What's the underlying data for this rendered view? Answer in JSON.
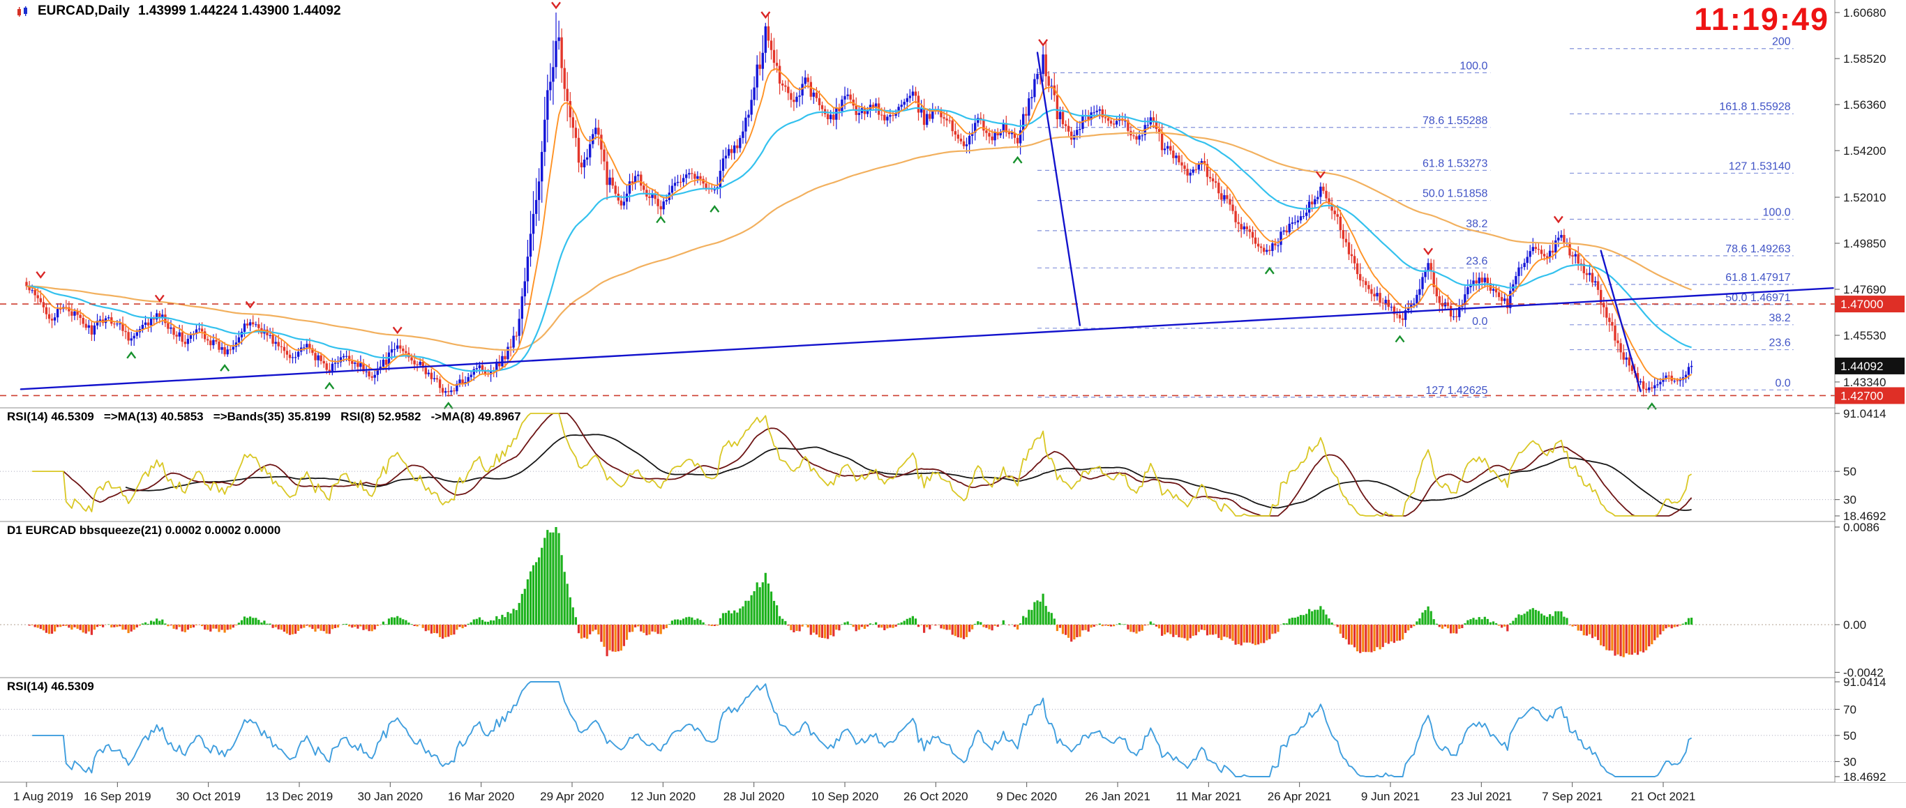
{
  "window": {
    "clock": "11:19:49"
  },
  "main": {
    "title": "EURCAD,Daily",
    "ohlc": "1.43999 1.44224 1.43900 1.44092",
    "scale": [
      {
        "t": "1.60680",
        "v": 1.6068
      },
      {
        "t": "1.58520",
        "v": 1.5852
      },
      {
        "t": "1.56360",
        "v": 1.5636
      },
      {
        "t": "1.54200",
        "v": 1.542
      },
      {
        "t": "1.52010",
        "v": 1.5201
      },
      {
        "t": "1.49850",
        "v": 1.4985
      },
      {
        "t": "1.47690",
        "v": 1.4769
      },
      {
        "t": "1.45530",
        "v": 1.4553
      },
      {
        "t": "1.43340",
        "v": 1.4334
      }
    ],
    "badges": [
      {
        "t": "1.47000",
        "v": 1.47,
        "style": "red"
      },
      {
        "t": "1.44092",
        "v": 1.44092,
        "style": "black"
      },
      {
        "t": "1.42700",
        "v": 1.427,
        "style": "red"
      }
    ]
  },
  "panels": {
    "rsi_multi": {
      "header": "RSI(14) 46.5309   =>MA(13) 40.5853   =>Bands(35) 35.8199   RSI(8) 52.9582   ->MA(8) 49.8967",
      "scale": [
        {
          "t": "91.0414",
          "v": 91.0414
        },
        {
          "t": "50",
          "v": 50
        },
        {
          "t": "30",
          "v": 30
        },
        {
          "t": "18.4692",
          "v": 18.4692
        }
      ],
      "dotted_levels": [
        50,
        30
      ]
    },
    "squeeze": {
      "header": "D1 EURCAD bbsqueeze(21) 0.0002 0.0002 0.0000",
      "scale": [
        {
          "t": "0.0086",
          "v": 0.0086
        },
        {
          "t": "0.00",
          "v": 0
        },
        {
          "t": "-0.0042",
          "v": -0.0042
        }
      ]
    },
    "rsi14": {
      "header": "RSI(14) 46.5309",
      "scale": [
        {
          "t": "91.0414",
          "v": 91.0414
        },
        {
          "t": "70",
          "v": 70
        },
        {
          "t": "50",
          "v": 50
        },
        {
          "t": "30",
          "v": 30
        },
        {
          "t": "18.4692",
          "v": 18.4692
        }
      ],
      "dotted_levels": [
        70,
        50,
        30
      ]
    }
  },
  "timeline": {
    "labels": [
      "1 Aug 2019",
      "16 Sep 2019",
      "30 Oct 2019",
      "13 Dec 2019",
      "30 Jan 2020",
      "16 Mar 2020",
      "29 Apr 2020",
      "12 Jun 2020",
      "28 Jul 2020",
      "10 Sep 2020",
      "26 Oct 2020",
      "9 Dec 2020",
      "26 Jan 2021",
      "11 Mar 2021",
      "26 Apr 2021",
      "9 Jun 2021",
      "23 Jul 2021",
      "7 Sep 2021",
      "21 Oct 2021"
    ]
  },
  "colors": {
    "bull": "#1416d8",
    "bear": "#e3362a",
    "ma_fast": "#ff9224",
    "ma_mid": "#33c1ee",
    "ma_slow": "#f2b05e",
    "trendline": "#1212cc",
    "fib_line": "#8291da",
    "fib_text": "#4053c6",
    "hline": "#cd3d2e",
    "badge_red": "#df2f26",
    "badge_black": "#111111",
    "clock": "#ee1313",
    "rsi_fast": "#d9c724",
    "rsi_ma": "#6d1414",
    "rsi_slow": "#161616",
    "squeeze_pos": "#1cb21c",
    "squeeze_neg": "#e23030",
    "squeeze_neg2": "#f6830f",
    "rsi14_line": "#3f9ede",
    "marker_down": "#d92525",
    "marker_up": "#17912d"
  },
  "chart_data": {
    "type": "candlestick",
    "symbol": "EURCAD",
    "timeframe": "Daily",
    "x_unit": "trading-day index starting 1 Aug 2019",
    "last_close": 1.44092,
    "panels_meta": [
      {
        "name": "price",
        "ylim": [
          1.421,
          1.613
        ]
      },
      {
        "name": "rsi_multi",
        "ylim": [
          18.4692,
          91.0414
        ]
      },
      {
        "name": "bbsqueeze",
        "ylim": [
          -0.0042,
          0.0086
        ]
      },
      {
        "name": "rsi14",
        "ylim": [
          18.4692,
          91.0414
        ]
      }
    ],
    "indicators": {
      "ma_fast_period": 10,
      "ma_mid_period": 45,
      "ma_slow_period": 150,
      "rsi_period": 14,
      "rsi_ma_period": 13,
      "rsi_slow_ma_period": 35,
      "squeeze_period": 21,
      "squeeze_scale_max": 0.0086
    },
    "price_anchors": {
      "day": [
        0,
        5,
        9,
        14,
        19,
        23,
        28,
        33,
        37,
        42,
        47,
        51,
        56,
        61,
        65,
        70,
        75,
        79,
        84,
        89,
        93,
        98,
        103,
        107,
        112,
        117,
        121,
        126,
        131,
        135,
        140,
        145,
        149,
        154,
        159,
        163,
        168,
        173,
        177,
        182,
        187,
        191,
        196,
        201,
        205,
        210,
        215,
        219,
        224,
        229,
        233,
        238,
        243,
        247,
        252,
        257,
        261,
        266,
        271,
        275,
        280,
        285,
        289,
        294,
        299,
        303,
        308,
        313,
        317,
        322,
        327,
        331,
        336,
        341,
        345,
        350,
        355,
        359,
        364,
        369,
        373,
        378,
        383,
        387,
        392,
        397,
        401,
        406,
        411,
        415,
        420,
        425,
        429,
        434,
        439,
        443,
        448,
        453,
        457,
        462,
        467,
        471,
        476,
        481,
        485,
        490,
        495,
        499,
        504,
        509,
        513,
        518,
        523,
        527,
        532,
        537,
        541,
        546,
        551,
        555,
        560,
        565,
        569,
        574,
        579,
        583,
        588
      ],
      "close": [
        1.478,
        1.47,
        1.4635,
        1.469,
        1.462,
        1.4575,
        1.464,
        1.46,
        1.4535,
        1.46,
        1.465,
        1.459,
        1.452,
        1.458,
        1.4525,
        1.4475,
        1.455,
        1.462,
        1.457,
        1.45,
        1.445,
        1.4505,
        1.444,
        1.4395,
        1.445,
        1.442,
        1.436,
        1.442,
        1.45,
        1.446,
        1.4395,
        1.433,
        1.4275,
        1.434,
        1.441,
        1.438,
        1.444,
        1.456,
        1.49,
        1.54,
        1.6,
        1.56,
        1.535,
        1.552,
        1.53,
        1.518,
        1.532,
        1.523,
        1.515,
        1.526,
        1.533,
        1.528,
        1.523,
        1.54,
        1.546,
        1.57,
        1.6,
        1.576,
        1.565,
        1.575,
        1.562,
        1.556,
        1.568,
        1.559,
        1.564,
        1.556,
        1.562,
        1.568,
        1.556,
        1.562,
        1.552,
        1.545,
        1.556,
        1.548,
        1.553,
        1.546,
        1.57,
        1.585,
        1.56,
        1.548,
        1.556,
        1.562,
        1.553,
        1.556,
        1.548,
        1.556,
        1.545,
        1.538,
        1.531,
        1.536,
        1.525,
        1.515,
        1.506,
        1.499,
        1.494,
        1.502,
        1.508,
        1.516,
        1.523,
        1.512,
        1.496,
        1.483,
        1.475,
        1.469,
        1.462,
        1.47,
        1.487,
        1.472,
        1.464,
        1.476,
        1.484,
        1.475,
        1.47,
        1.485,
        1.496,
        1.49,
        1.502,
        1.493,
        1.485,
        1.476,
        1.458,
        1.443,
        1.433,
        1.4295,
        1.436,
        1.433,
        1.44092
      ]
    },
    "annotations": {
      "hlines": [
        {
          "price": 1.47
        },
        {
          "price": 1.427
        }
      ],
      "trendlines": [
        {
          "d1": -2,
          "p1": 1.43,
          "d2": 638,
          "p2": 1.4775
        },
        {
          "d1": 357,
          "p1": 1.588,
          "d2": 372,
          "p2": 1.46
        },
        {
          "d1": 556,
          "p1": 1.495,
          "d2": 570,
          "p2": 1.429
        }
      ],
      "fibo": [
        {
          "d1": 357,
          "d2": 517,
          "levels": [
            [
              "100.0",
              1.57853
            ],
            [
              "78.6 1.55288",
              1.55288
            ],
            [
              "61.8 1.53273",
              1.53273
            ],
            [
              "50.0 1.51858",
              1.51858
            ],
            [
              "38.2",
              1.50443
            ],
            [
              "23.6",
              1.48693
            ],
            [
              "0.0",
              1.45863
            ],
            [
              "127 1.42625",
              1.42625
            ]
          ]
        },
        {
          "d1": 545,
          "d2": 624,
          "levels": [
            [
              "200",
              1.58987
            ],
            [
              "161.8 1.55928",
              1.55928
            ],
            [
              "127 1.53140",
              1.5314
            ],
            [
              "100.0",
              1.50978
            ],
            [
              "78.6 1.49263",
              1.49263
            ],
            [
              "61.8 1.47917",
              1.47917
            ],
            [
              "50.0 1.46971",
              1.46971
            ],
            [
              "38.2",
              1.46026
            ],
            [
              "23.6",
              1.44857
            ],
            [
              "0.0",
              1.42967
            ]
          ]
        }
      ],
      "markers": [
        {
          "day": 5,
          "price": 1.4835,
          "dir": "down"
        },
        {
          "day": 47,
          "price": 1.4725,
          "dir": "down"
        },
        {
          "day": 79,
          "price": 1.4695,
          "dir": "down"
        },
        {
          "day": 131,
          "price": 1.4575,
          "dir": "down"
        },
        {
          "day": 187,
          "price": 1.61,
          "dir": "down"
        },
        {
          "day": 261,
          "price": 1.6055,
          "dir": "down"
        },
        {
          "day": 359,
          "price": 1.5925,
          "dir": "down"
        },
        {
          "day": 457,
          "price": 1.5305,
          "dir": "down"
        },
        {
          "day": 495,
          "price": 1.4945,
          "dir": "down"
        },
        {
          "day": 541,
          "price": 1.5095,
          "dir": "down"
        },
        {
          "day": 37,
          "price": 1.4462,
          "dir": "up"
        },
        {
          "day": 70,
          "price": 1.4402,
          "dir": "up"
        },
        {
          "day": 107,
          "price": 1.4318,
          "dir": "up"
        },
        {
          "day": 149,
          "price": 1.4225,
          "dir": "up"
        },
        {
          "day": 224,
          "price": 1.5098,
          "dir": "up"
        },
        {
          "day": 243,
          "price": 1.5148,
          "dir": "up"
        },
        {
          "day": 350,
          "price": 1.5378,
          "dir": "up"
        },
        {
          "day": 439,
          "price": 1.4858,
          "dir": "up"
        },
        {
          "day": 485,
          "price": 1.4538,
          "dir": "up"
        },
        {
          "day": 574,
          "price": 1.4222,
          "dir": "up"
        }
      ]
    }
  }
}
